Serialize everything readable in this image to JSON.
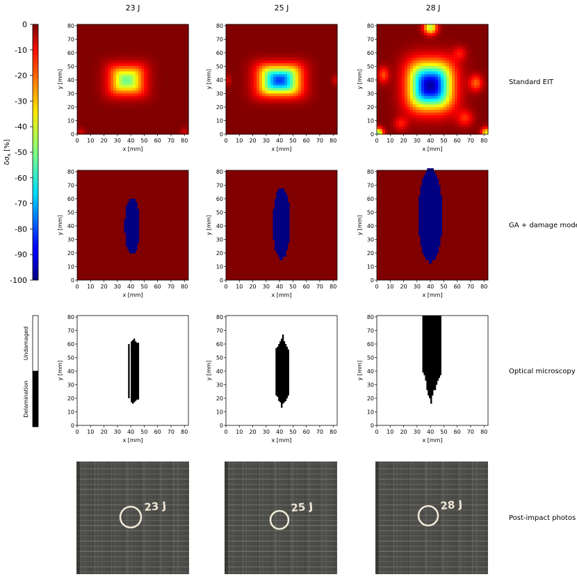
{
  "figure": {
    "columns": [
      "23 J",
      "25 J",
      "28 J"
    ],
    "rows": [
      "Standard EIT",
      "GA + damage model",
      "Optical microscopy",
      "Post-impact photos"
    ],
    "colorbar": {
      "label_main": "δσ",
      "label_sub": "x",
      "label_unit": " [%]",
      "ticks": [
        0,
        -10,
        -20,
        -30,
        -40,
        -50,
        -60,
        -70,
        -80,
        -90,
        -100
      ],
      "range": [
        -100,
        0
      ]
    },
    "binary_legend": {
      "top": "Undamaged",
      "bottom": "Delamination"
    }
  },
  "chart_data": {
    "type": "heatmap",
    "panel_axes": {
      "xlabel": "x [mm]",
      "ylabel": "y [mm]",
      "xlim": [
        0,
        83
      ],
      "ylim": [
        0,
        81
      ],
      "xticks": [
        0,
        10,
        20,
        30,
        40,
        50,
        60,
        70,
        80
      ],
      "yticks": [
        0,
        10,
        20,
        30,
        40,
        50,
        60,
        70,
        80
      ]
    },
    "standard_eit": [
      {
        "energy": "23 J",
        "min_value": -52,
        "blobs": [
          {
            "cx": 37,
            "cy": 40,
            "sx": 12,
            "sy": 10,
            "amp": -52,
            "p": 4
          },
          {
            "cx": 3,
            "cy": 2,
            "sx": 3,
            "sy": 3,
            "amp": -8,
            "p": 2
          },
          {
            "cx": 80,
            "cy": 2,
            "sx": 3,
            "sy": 3,
            "amp": -8,
            "p": 2
          }
        ]
      },
      {
        "energy": "25 J",
        "min_value": -80,
        "blobs": [
          {
            "cx": 40,
            "cy": 40,
            "sx": 14,
            "sy": 10,
            "amp": -82,
            "p": 4
          },
          {
            "cx": 1,
            "cy": 40,
            "sx": 3,
            "sy": 4,
            "amp": -8,
            "p": 2
          },
          {
            "cx": 82,
            "cy": 40,
            "sx": 3,
            "sy": 4,
            "amp": -8,
            "p": 2
          }
        ]
      },
      {
        "energy": "28 J",
        "min_value": -95,
        "blobs": [
          {
            "cx": 40,
            "cy": 36,
            "sx": 15,
            "sy": 16,
            "amp": -97,
            "p": 3
          },
          {
            "cx": 40,
            "cy": 79,
            "sx": 5,
            "sy": 5,
            "amp": -45,
            "p": 2
          },
          {
            "cx": 1,
            "cy": 1,
            "sx": 4,
            "sy": 4,
            "amp": -48,
            "p": 2
          },
          {
            "cx": 82,
            "cy": 1,
            "sx": 4,
            "sy": 4,
            "amp": -40,
            "p": 2
          },
          {
            "cx": 74,
            "cy": 38,
            "sx": 5,
            "sy": 6,
            "amp": -22,
            "p": 2
          },
          {
            "cx": 5,
            "cy": 44,
            "sx": 4,
            "sy": 6,
            "amp": -20,
            "p": 2
          },
          {
            "cx": 18,
            "cy": 8,
            "sx": 5,
            "sy": 5,
            "amp": -14,
            "p": 2
          },
          {
            "cx": 66,
            "cy": 12,
            "sx": 6,
            "sy": 6,
            "amp": -16,
            "p": 2
          },
          {
            "cx": 62,
            "cy": 60,
            "sx": 5,
            "sy": 5,
            "amp": -12,
            "p": 2
          }
        ]
      }
    ],
    "ga_damage_model": [
      {
        "energy": "23 J",
        "value_inside": -100,
        "value_outside": 0,
        "ellipse": {
          "cx": 41,
          "cy": 40,
          "rx": 5.5,
          "ry": 21
        }
      },
      {
        "energy": "25 J",
        "value_inside": -100,
        "value_outside": 0,
        "ellipse": {
          "cx": 41.5,
          "cy": 42,
          "rx": 6.5,
          "ry": 26
        }
      },
      {
        "energy": "28 J",
        "value_inside": -100,
        "value_outside": 0,
        "ellipse": {
          "cx": 40,
          "cy": 48,
          "rx": 9,
          "ry": 35
        }
      }
    ],
    "optical_microscopy": [
      {
        "energy": "23 J",
        "columns": [
          [
            38,
            20,
            60
          ],
          [
            40,
            17,
            62
          ],
          [
            41,
            16,
            63
          ],
          [
            42,
            17,
            64
          ],
          [
            43,
            18,
            62
          ],
          [
            44,
            19,
            61
          ],
          [
            45,
            19,
            61
          ]
        ]
      },
      {
        "energy": "25 J",
        "columns": [
          [
            37,
            22,
            57
          ],
          [
            38,
            21,
            58
          ],
          [
            39,
            18,
            60
          ],
          [
            40,
            17,
            62
          ],
          [
            41,
            13,
            64
          ],
          [
            42,
            16,
            67
          ],
          [
            43,
            17,
            62
          ],
          [
            44,
            18,
            60
          ],
          [
            45,
            20,
            58
          ],
          [
            46,
            22,
            56
          ]
        ]
      },
      {
        "energy": "28 J",
        "columns": [
          [
            34,
            39,
            81
          ],
          [
            35,
            37,
            81
          ],
          [
            36,
            33,
            81
          ],
          [
            37,
            26,
            81
          ],
          [
            38,
            22,
            81
          ],
          [
            39,
            20,
            81
          ],
          [
            40,
            16,
            81
          ],
          [
            41,
            22,
            81
          ],
          [
            42,
            26,
            81
          ],
          [
            43,
            26,
            81
          ],
          [
            44,
            30,
            81
          ],
          [
            45,
            33,
            81
          ],
          [
            46,
            35,
            81
          ],
          [
            47,
            37,
            81
          ]
        ]
      }
    ],
    "photo_labels": [
      "23 J",
      "25 J",
      "28 J"
    ]
  }
}
